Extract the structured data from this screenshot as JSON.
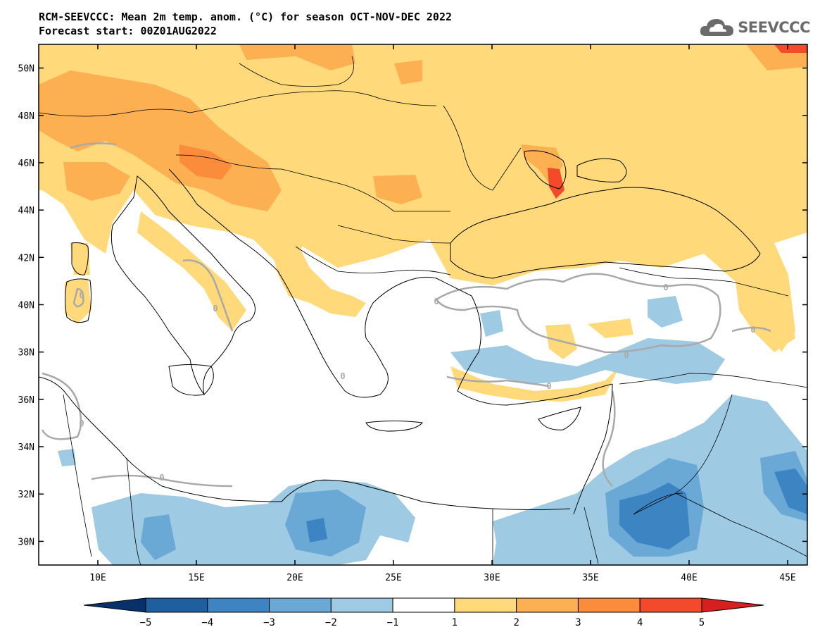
{
  "header": {
    "title": "RCM-SEEVCCC: Mean 2m temp. anom. (°C) for season OCT-NOV-DEC 2022",
    "subtitle": "Forecast start: 00Z01AUG2022"
  },
  "logo": {
    "text": "SEEVCCC",
    "icon": "cloud-logo-icon"
  },
  "map": {
    "lon_range": [
      7,
      46
    ],
    "lat_range": [
      29,
      51
    ],
    "lon_ticks": [
      10,
      15,
      20,
      25,
      30,
      35,
      40,
      45
    ],
    "lon_tick_labels": [
      "10E",
      "15E",
      "20E",
      "25E",
      "30E",
      "35E",
      "40E",
      "45E"
    ],
    "lat_ticks": [
      30,
      32,
      34,
      36,
      38,
      40,
      42,
      44,
      46,
      48,
      50
    ],
    "lat_tick_labels": [
      "30N",
      "32N",
      "34N",
      "36N",
      "38N",
      "40N",
      "42N",
      "44N",
      "46N",
      "48N",
      "50N"
    ],
    "contour_label": "0",
    "colors": {
      "sea": "#ffffff",
      "pos1": "#ffd97a",
      "pos2": "#fdb052",
      "pos3": "#fb8c3c",
      "pos4": "#f24a2a",
      "neg1": "#9ecbe3",
      "neg2": "#6aa9d6",
      "neg3": "#3d85c2",
      "contour": "#a9a9a9",
      "border": "#000000"
    }
  },
  "colorbar": {
    "tick_labels": [
      "−5",
      "−4",
      "−3",
      "−2",
      "−1",
      "1",
      "2",
      "3",
      "4",
      "5"
    ],
    "colors": [
      "#08306b",
      "#1e5fa0",
      "#3d85c2",
      "#6aa9d6",
      "#9ecbe3",
      "#ffffff",
      "#ffd97a",
      "#fdb052",
      "#fb8c3c",
      "#f24a2a",
      "#d61f1f"
    ]
  }
}
